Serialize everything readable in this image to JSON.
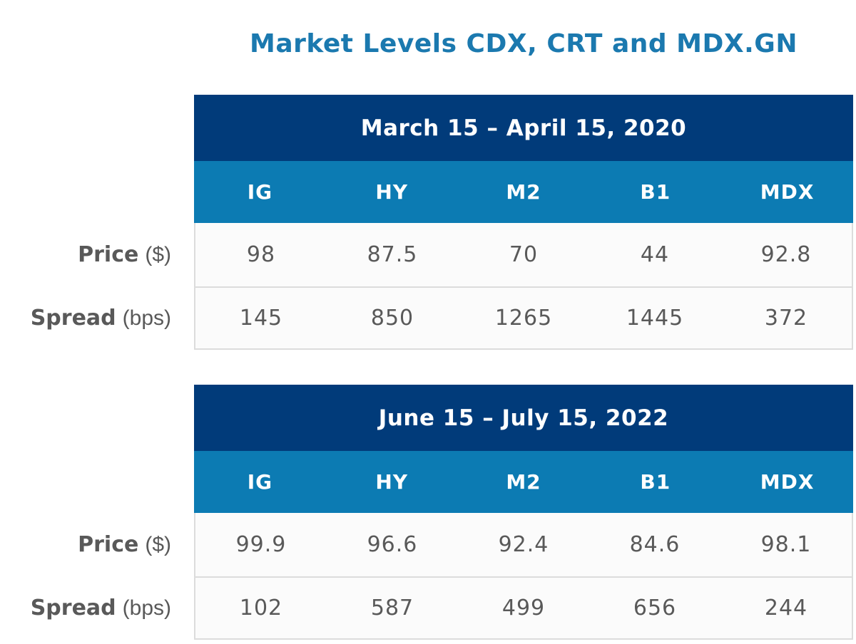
{
  "title": "Market Levels CDX, CRT and MDX.GN",
  "columns": [
    "IG",
    "HY",
    "M2",
    "B1",
    "MDX"
  ],
  "row_labels": {
    "price": {
      "name": "Price",
      "unit": "($)"
    },
    "spread": {
      "name": "Spread",
      "unit": "(bps)"
    }
  },
  "tables": [
    {
      "period": "March 15 – April 15, 2020",
      "price": [
        "98",
        "87.5",
        "70",
        "44",
        "92.8"
      ],
      "spread": [
        "145",
        "850",
        "1265",
        "1445",
        "372"
      ]
    },
    {
      "period": "June 15 – July 15, 2022",
      "price": [
        "99.9",
        "96.6",
        "92.4",
        "84.6",
        "98.1"
      ],
      "spread": [
        "102",
        "587",
        "499",
        "656",
        "244"
      ]
    }
  ],
  "colors": {
    "title": "#1B79AF",
    "period_header_bg": "#013B7A",
    "column_header_bg": "#0C7BB3",
    "header_text": "#FFFFFF",
    "body_text": "#595959",
    "border": "#DCDCDC",
    "cell_bg": "#FBFBFB"
  },
  "chart_data": [
    {
      "type": "table",
      "title": "March 15 – April 15, 2020",
      "figure_title": "Market Levels CDX, CRT and MDX.GN",
      "columns": [
        "IG",
        "HY",
        "M2",
        "B1",
        "MDX"
      ],
      "rows": [
        {
          "label": "Price ($)",
          "values": [
            98,
            87.5,
            70,
            44,
            92.8
          ]
        },
        {
          "label": "Spread (bps)",
          "values": [
            145,
            850,
            1265,
            1445,
            372
          ]
        }
      ]
    },
    {
      "type": "table",
      "title": "June 15 – July 15, 2022",
      "figure_title": "Market Levels CDX, CRT and MDX.GN",
      "columns": [
        "IG",
        "HY",
        "M2",
        "B1",
        "MDX"
      ],
      "rows": [
        {
          "label": "Price ($)",
          "values": [
            99.9,
            96.6,
            92.4,
            84.6,
            98.1
          ]
        },
        {
          "label": "Spread (bps)",
          "values": [
            102,
            587,
            499,
            656,
            244
          ]
        }
      ]
    }
  ]
}
